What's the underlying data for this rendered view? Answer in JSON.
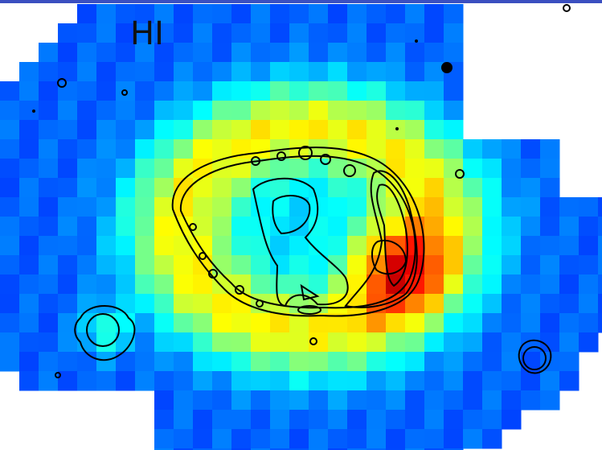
{
  "label": "HI"
}
